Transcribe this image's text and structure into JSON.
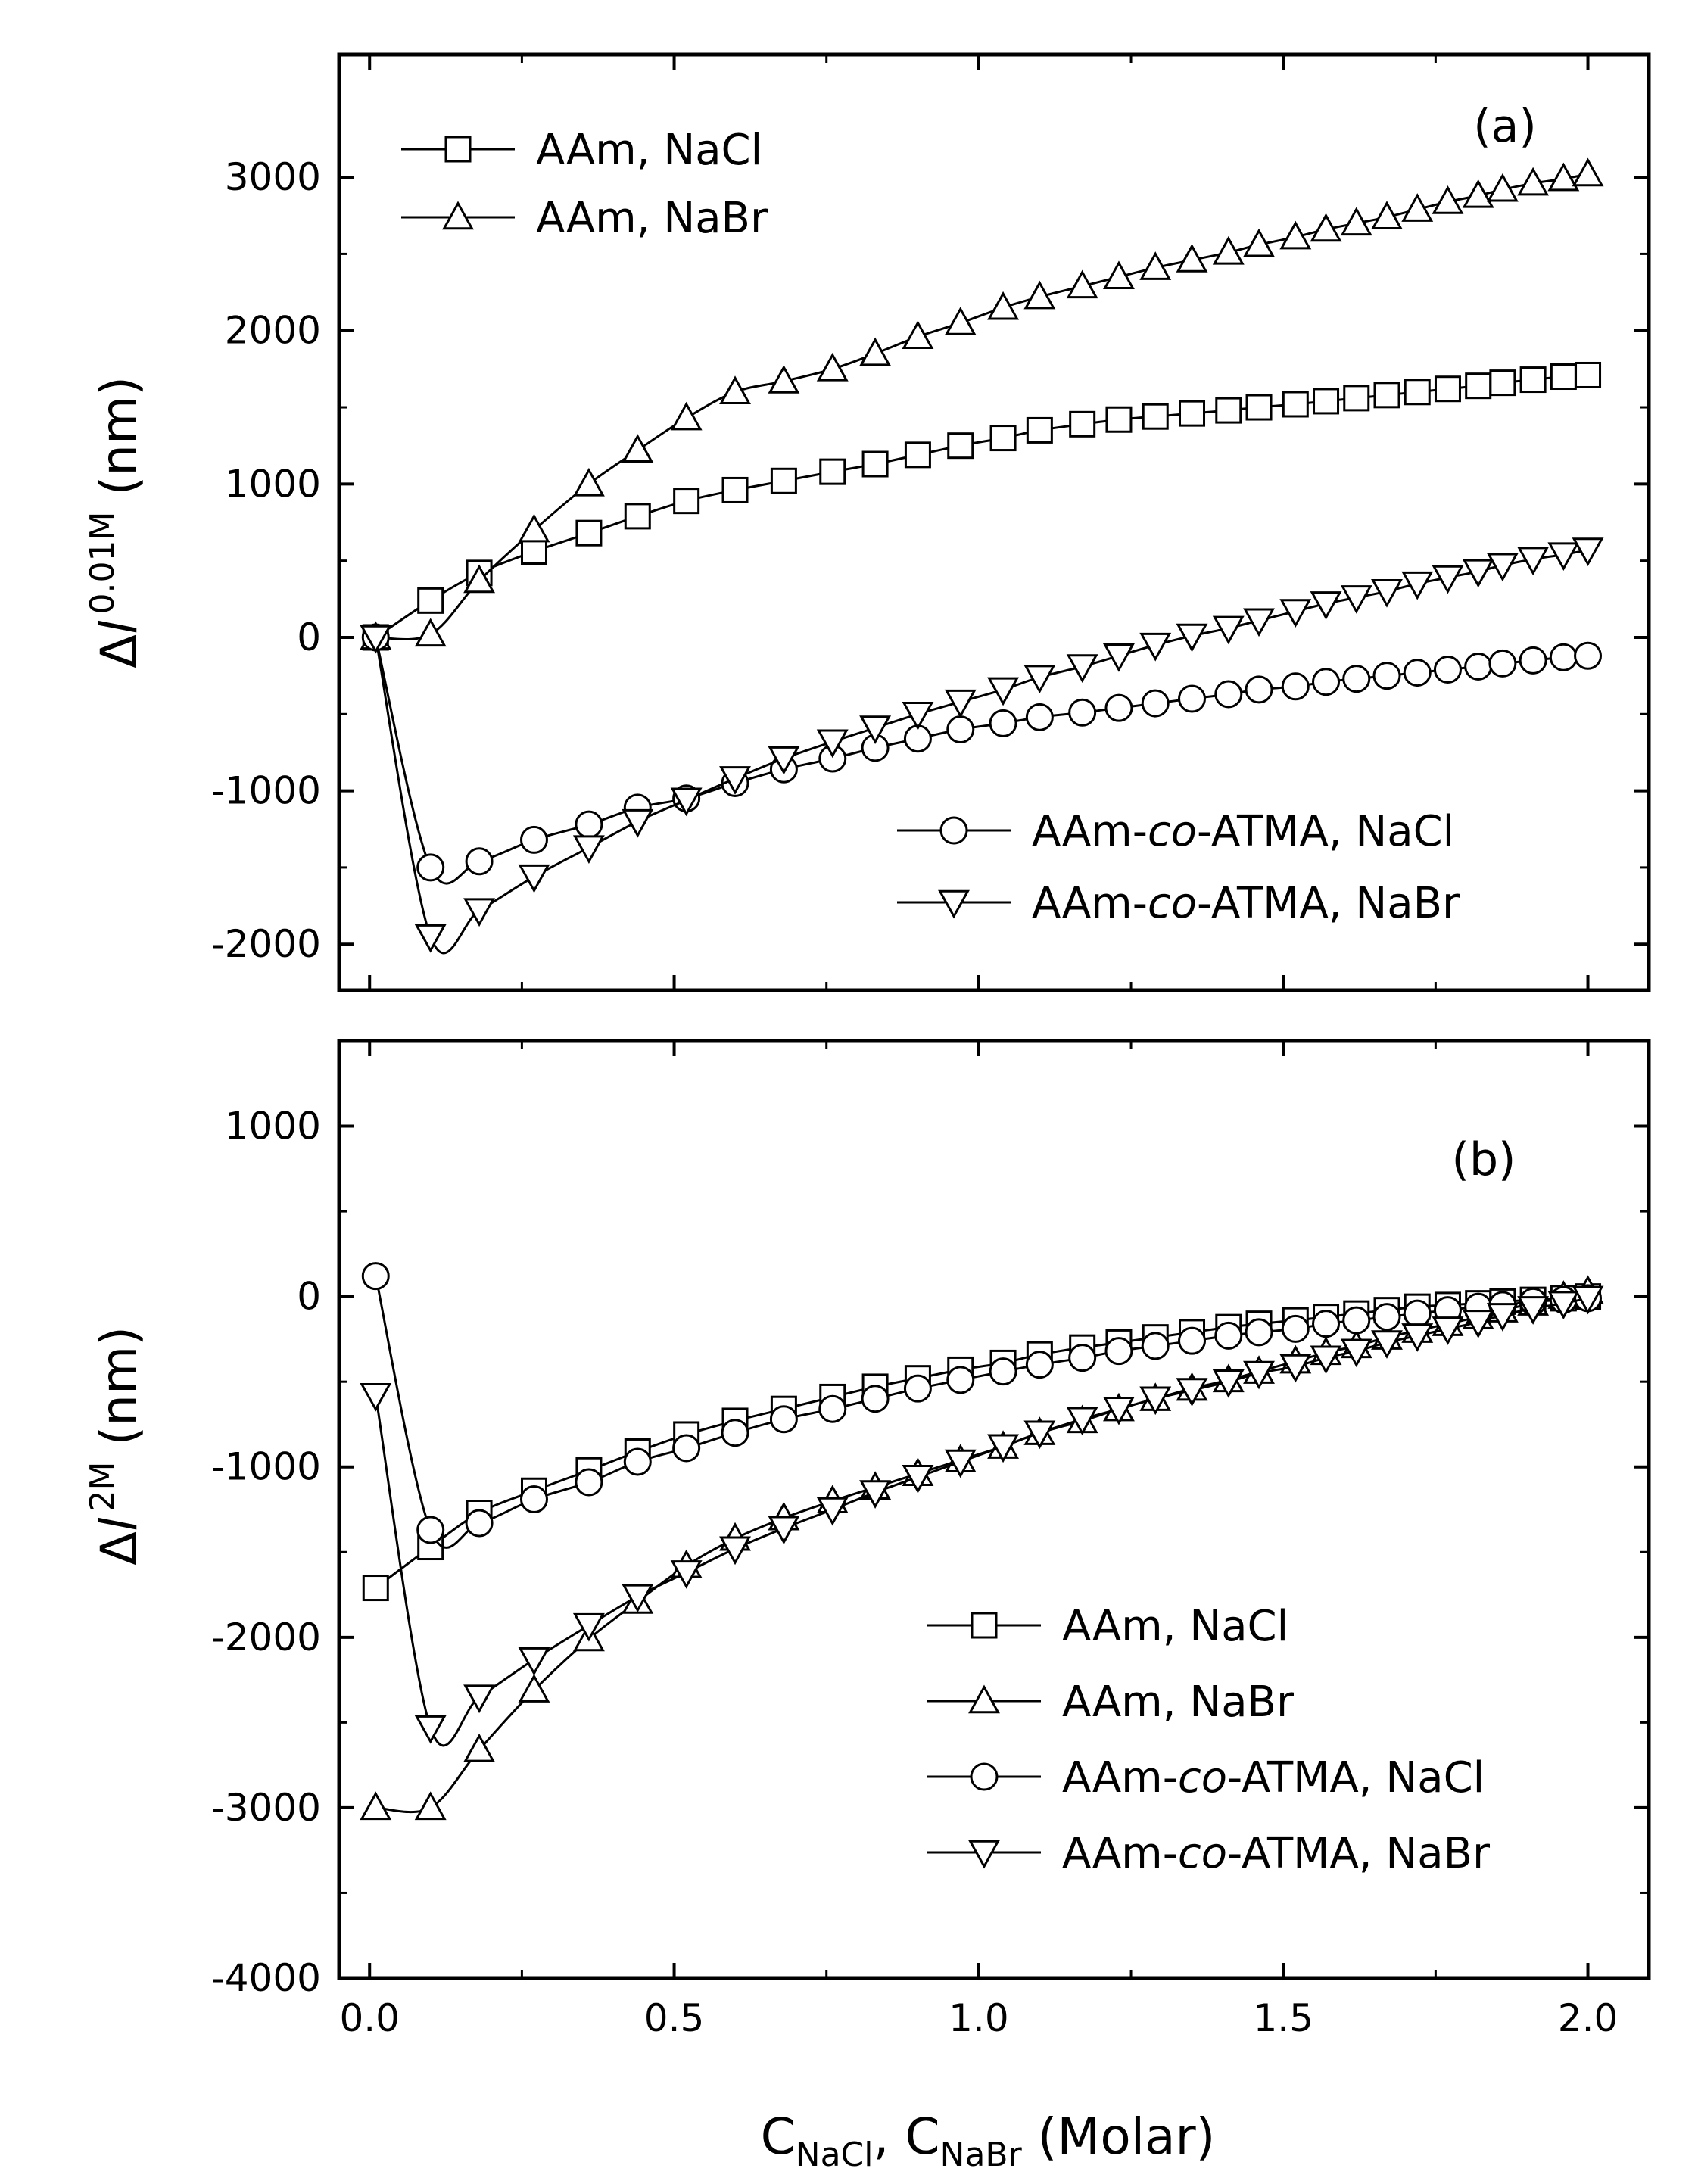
{
  "chart_data": [
    {
      "type": "line",
      "panel": "a",
      "panel_label": "(a)",
      "ylabel": {
        "delta": "Δ",
        "l": "l",
        "sup": "0.01M",
        "unit": " (nm)"
      },
      "ylim": [
        -2300,
        3800
      ],
      "yticks": [
        -2000,
        -1000,
        0,
        1000,
        2000,
        3000
      ],
      "ytick_labels": [
        "-2000",
        "-1000",
        "0",
        "1000",
        "2000",
        "3000"
      ],
      "xlim": [
        -0.05,
        2.1
      ],
      "legend": [
        {
          "position": "top-left",
          "entries": [
            0,
            1
          ]
        },
        {
          "position": "bottom-right",
          "entries": [
            2,
            3
          ]
        }
      ],
      "series": [
        {
          "name": "AAm, NaCl",
          "marker": "square",
          "x": [
            0.01,
            0.1,
            0.18,
            0.27,
            0.36,
            0.44,
            0.52,
            0.6,
            0.68,
            0.76,
            0.83,
            0.9,
            0.97,
            1.04,
            1.1,
            1.17,
            1.23,
            1.29,
            1.35,
            1.41,
            1.46,
            1.52,
            1.57,
            1.62,
            1.67,
            1.72,
            1.77,
            1.82,
            1.86,
            1.91,
            1.96,
            2.0
          ],
          "y": [
            0,
            240,
            420,
            560,
            680,
            790,
            890,
            960,
            1020,
            1080,
            1130,
            1190,
            1250,
            1300,
            1350,
            1390,
            1420,
            1440,
            1460,
            1480,
            1500,
            1520,
            1540,
            1560,
            1580,
            1600,
            1620,
            1640,
            1660,
            1680,
            1700,
            1710
          ]
        },
        {
          "name": "AAm, NaBr",
          "marker": "triangle-up",
          "x": [
            0.01,
            0.1,
            0.18,
            0.27,
            0.36,
            0.44,
            0.52,
            0.6,
            0.68,
            0.76,
            0.83,
            0.9,
            0.97,
            1.04,
            1.1,
            1.17,
            1.23,
            1.29,
            1.35,
            1.41,
            1.46,
            1.52,
            1.57,
            1.62,
            1.67,
            1.72,
            1.77,
            1.82,
            1.86,
            1.91,
            1.96,
            2.0
          ],
          "y": [
            0,
            20,
            370,
            700,
            1000,
            1220,
            1430,
            1600,
            1670,
            1750,
            1850,
            1960,
            2050,
            2150,
            2220,
            2290,
            2350,
            2410,
            2460,
            2510,
            2560,
            2610,
            2660,
            2700,
            2740,
            2790,
            2840,
            2880,
            2920,
            2960,
            2990,
            3020
          ]
        },
        {
          "name": "AAm-co-ATMA, NaCl",
          "marker": "circle",
          "x": [
            0.01,
            0.1,
            0.18,
            0.27,
            0.36,
            0.44,
            0.52,
            0.6,
            0.68,
            0.76,
            0.83,
            0.9,
            0.97,
            1.04,
            1.1,
            1.17,
            1.23,
            1.29,
            1.35,
            1.41,
            1.46,
            1.52,
            1.57,
            1.62,
            1.67,
            1.72,
            1.77,
            1.82,
            1.86,
            1.91,
            1.96,
            2.0
          ],
          "y": [
            0,
            -1500,
            -1460,
            -1320,
            -1220,
            -1110,
            -1050,
            -950,
            -860,
            -790,
            -720,
            -660,
            -600,
            -560,
            -520,
            -490,
            -460,
            -430,
            -400,
            -370,
            -340,
            -320,
            -290,
            -270,
            -250,
            -230,
            -210,
            -190,
            -170,
            -150,
            -130,
            -120
          ]
        },
        {
          "name": "AAm-co-ATMA, NaBr",
          "marker": "triangle-down",
          "x": [
            0.01,
            0.1,
            0.18,
            0.27,
            0.36,
            0.44,
            0.52,
            0.6,
            0.68,
            0.76,
            0.83,
            0.9,
            0.97,
            1.04,
            1.1,
            1.17,
            1.23,
            1.29,
            1.35,
            1.41,
            1.46,
            1.52,
            1.57,
            1.62,
            1.67,
            1.72,
            1.77,
            1.82,
            1.86,
            1.91,
            1.96,
            2.0
          ],
          "y": [
            0,
            -1950,
            -1780,
            -1560,
            -1370,
            -1200,
            -1060,
            -920,
            -790,
            -680,
            -590,
            -500,
            -420,
            -340,
            -260,
            -190,
            -120,
            -50,
            10,
            60,
            110,
            170,
            220,
            260,
            300,
            350,
            390,
            430,
            470,
            510,
            540,
            570
          ]
        }
      ]
    },
    {
      "type": "line",
      "panel": "b",
      "panel_label": "(b)",
      "ylabel": {
        "delta": "Δ",
        "l": "l",
        "sup": "2M",
        "unit": " (nm)"
      },
      "ylim": [
        -4000,
        1500
      ],
      "yticks": [
        -4000,
        -3000,
        -2000,
        -1000,
        0,
        1000
      ],
      "ytick_labels": [
        "-4000",
        "-3000",
        "-2000",
        "-1000",
        "0",
        "1000"
      ],
      "xlim": [
        -0.05,
        2.1
      ],
      "xticks": [
        0.0,
        0.5,
        1.0,
        1.5,
        2.0
      ],
      "xtick_labels": [
        "0.0",
        "0.5",
        "1.0",
        "1.5",
        "2.0"
      ],
      "xlabel": {
        "c1": "C",
        "sub1": "NaCl",
        "sep": ", C",
        "sub2": "NaBr",
        "rest": " (Molar)"
      },
      "legend": [
        {
          "position": "bottom-right",
          "entries": [
            0,
            1,
            2,
            3
          ]
        }
      ],
      "series": [
        {
          "name": "AAm, NaCl",
          "marker": "square",
          "x": [
            0.01,
            0.1,
            0.18,
            0.27,
            0.36,
            0.44,
            0.52,
            0.6,
            0.68,
            0.76,
            0.83,
            0.9,
            0.97,
            1.04,
            1.1,
            1.17,
            1.23,
            1.29,
            1.35,
            1.41,
            1.46,
            1.52,
            1.57,
            1.62,
            1.67,
            1.72,
            1.77,
            1.82,
            1.86,
            1.91,
            1.96,
            2.0
          ],
          "y": [
            -1710,
            -1470,
            -1270,
            -1140,
            -1020,
            -910,
            -810,
            -730,
            -660,
            -590,
            -530,
            -480,
            -430,
            -390,
            -340,
            -300,
            -270,
            -240,
            -210,
            -180,
            -160,
            -140,
            -120,
            -100,
            -80,
            -60,
            -50,
            -40,
            -30,
            -20,
            -10,
            0
          ]
        },
        {
          "name": "AAm, NaBr",
          "marker": "triangle-up",
          "x": [
            0.01,
            0.1,
            0.18,
            0.27,
            0.36,
            0.44,
            0.52,
            0.6,
            0.68,
            0.76,
            0.83,
            0.9,
            0.97,
            1.04,
            1.1,
            1.17,
            1.23,
            1.29,
            1.35,
            1.41,
            1.46,
            1.52,
            1.57,
            1.62,
            1.67,
            1.72,
            1.77,
            1.82,
            1.86,
            1.91,
            1.96,
            2.0
          ],
          "y": [
            -3000,
            -3000,
            -2660,
            -2310,
            -2010,
            -1790,
            -1580,
            -1420,
            -1300,
            -1200,
            -1120,
            -1040,
            -960,
            -880,
            -800,
            -730,
            -660,
            -600,
            -540,
            -490,
            -440,
            -380,
            -330,
            -290,
            -240,
            -200,
            -160,
            -120,
            -80,
            -40,
            0,
            30
          ]
        },
        {
          "name": "AAm-co-ATMA, NaCl",
          "marker": "circle",
          "x": [
            0.01,
            0.1,
            0.18,
            0.27,
            0.36,
            0.44,
            0.52,
            0.6,
            0.68,
            0.76,
            0.83,
            0.9,
            0.97,
            1.04,
            1.1,
            1.17,
            1.23,
            1.29,
            1.35,
            1.41,
            1.46,
            1.52,
            1.57,
            1.62,
            1.67,
            1.72,
            1.77,
            1.82,
            1.86,
            1.91,
            1.96,
            2.0
          ],
          "y": [
            120,
            -1370,
            -1330,
            -1190,
            -1090,
            -970,
            -890,
            -800,
            -720,
            -660,
            -600,
            -540,
            -490,
            -440,
            -400,
            -360,
            -320,
            -290,
            -260,
            -230,
            -210,
            -190,
            -160,
            -140,
            -120,
            -100,
            -80,
            -60,
            -50,
            -30,
            -20,
            -10
          ]
        },
        {
          "name": "AAm-co-ATMA, NaBr",
          "marker": "triangle-down",
          "x": [
            0.01,
            0.1,
            0.18,
            0.27,
            0.36,
            0.44,
            0.52,
            0.6,
            0.68,
            0.76,
            0.83,
            0.9,
            0.97,
            1.04,
            1.1,
            1.17,
            1.23,
            1.29,
            1.35,
            1.41,
            1.46,
            1.52,
            1.57,
            1.62,
            1.67,
            1.72,
            1.77,
            1.82,
            1.86,
            1.91,
            1.96,
            2.0
          ],
          "y": [
            -580,
            -2530,
            -2350,
            -2130,
            -1930,
            -1760,
            -1620,
            -1480,
            -1360,
            -1250,
            -1150,
            -1060,
            -970,
            -880,
            -800,
            -720,
            -660,
            -600,
            -550,
            -500,
            -450,
            -410,
            -360,
            -320,
            -270,
            -230,
            -190,
            -150,
            -110,
            -70,
            -40,
            -10
          ]
        }
      ]
    }
  ]
}
